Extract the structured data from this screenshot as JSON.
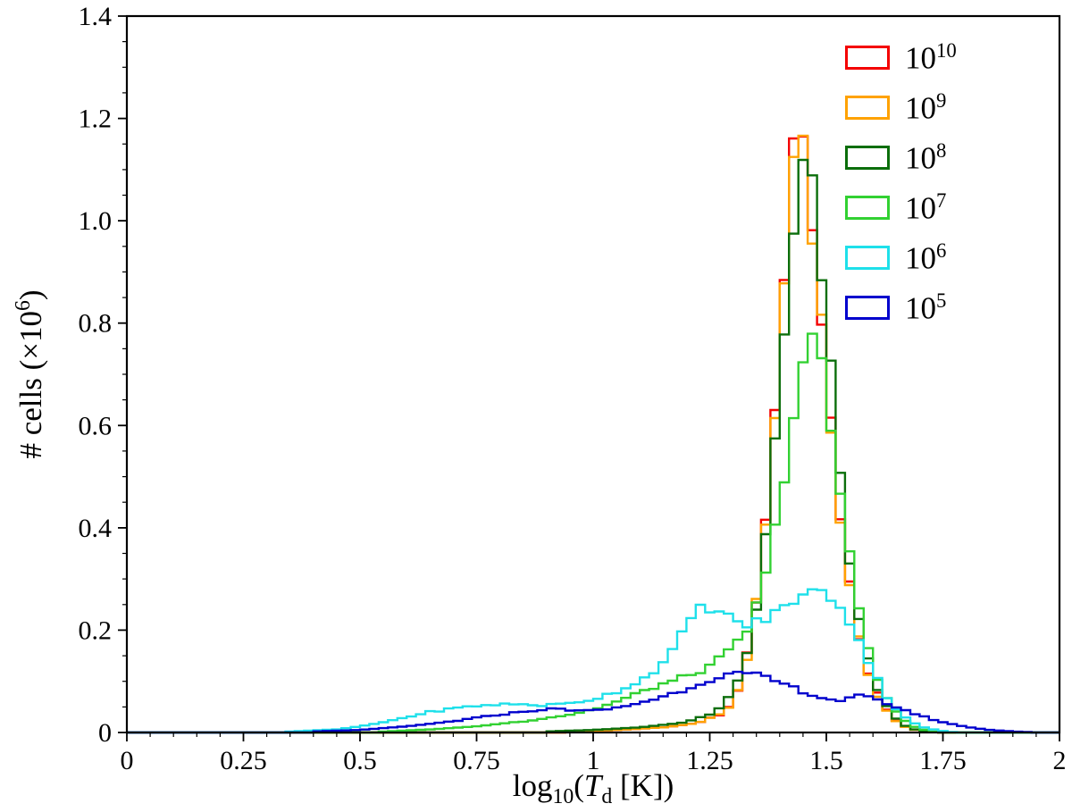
{
  "figure": {
    "background": "#ffffff"
  },
  "chart": {
    "ylabel_prefix": "# cells (×10",
    "ylabel_sup": "6",
    "ylabel_suffix": ")",
    "xlabel_log": "log",
    "xlabel_log_sub": "10",
    "xlabel_open": "(",
    "xlabel_T": "T",
    "xlabel_T_sub": "d",
    "xlabel_rest": " [K])"
  },
  "chart_data": {
    "type": "step_histogram",
    "title": "",
    "xlabel": "log10(T_d [K])",
    "ylabel": "# cells (x10^6)",
    "xlim": [
      0,
      2
    ],
    "ylim": [
      0,
      1.4
    ],
    "grid": false,
    "legend_position": "upper right",
    "x_ticks": [
      0,
      0.25,
      0.5,
      0.75,
      1,
      1.25,
      1.5,
      1.75,
      2
    ],
    "x_tick_labels": [
      "0",
      "0.25",
      "0.5",
      "0.75",
      "1",
      "1.25",
      "1.5",
      "1.75",
      "2"
    ],
    "y_ticks": [
      0,
      0.2,
      0.4,
      0.6,
      0.8,
      1.0,
      1.2,
      1.4
    ],
    "y_tick_labels": [
      "0",
      "0.2",
      "0.4",
      "0.6",
      "0.8",
      "1.0",
      "1.2",
      "1.4"
    ],
    "x_minor_step": 0.05,
    "y_minor_step": 0.05,
    "bin_width": 0.02,
    "series": [
      {
        "name": "1e10",
        "label_base": "10",
        "label_exp": "10",
        "color": "#f40000",
        "points": [
          [
            0.95,
            0.002
          ],
          [
            1.05,
            0.005
          ],
          [
            1.15,
            0.01
          ],
          [
            1.22,
            0.018
          ],
          [
            1.27,
            0.035
          ],
          [
            1.3,
            0.06
          ],
          [
            1.32,
            0.11
          ],
          [
            1.34,
            0.2
          ],
          [
            1.36,
            0.32
          ],
          [
            1.38,
            0.52
          ],
          [
            1.4,
            0.76
          ],
          [
            1.42,
            1.03
          ],
          [
            1.43,
            1.16
          ],
          [
            1.44,
            1.24
          ],
          [
            1.45,
            1.2
          ],
          [
            1.46,
            1.12
          ],
          [
            1.48,
            0.93
          ],
          [
            1.5,
            0.71
          ],
          [
            1.52,
            0.51
          ],
          [
            1.54,
            0.35
          ],
          [
            1.56,
            0.23
          ],
          [
            1.58,
            0.145
          ],
          [
            1.6,
            0.095
          ],
          [
            1.62,
            0.058
          ],
          [
            1.64,
            0.032
          ],
          [
            1.66,
            0.016
          ],
          [
            1.68,
            0.007
          ],
          [
            1.71,
            0.002
          ],
          [
            1.74,
            0
          ]
        ]
      },
      {
        "name": "1e9",
        "label_base": "10",
        "label_exp": "9",
        "color": "#ffa200",
        "points": [
          [
            0.95,
            0.002
          ],
          [
            1.05,
            0.005
          ],
          [
            1.15,
            0.01
          ],
          [
            1.22,
            0.018
          ],
          [
            1.27,
            0.034
          ],
          [
            1.3,
            0.058
          ],
          [
            1.32,
            0.105
          ],
          [
            1.34,
            0.19
          ],
          [
            1.36,
            0.31
          ],
          [
            1.38,
            0.5
          ],
          [
            1.4,
            0.74
          ],
          [
            1.42,
            1.0
          ],
          [
            1.43,
            1.13
          ],
          [
            1.44,
            1.21
          ],
          [
            1.45,
            1.17
          ],
          [
            1.46,
            1.09
          ],
          [
            1.48,
            0.91
          ],
          [
            1.5,
            0.69
          ],
          [
            1.52,
            0.5
          ],
          [
            1.54,
            0.34
          ],
          [
            1.56,
            0.22
          ],
          [
            1.58,
            0.14
          ],
          [
            1.6,
            0.09
          ],
          [
            1.62,
            0.055
          ],
          [
            1.64,
            0.03
          ],
          [
            1.66,
            0.015
          ],
          [
            1.68,
            0.007
          ],
          [
            1.71,
            0.002
          ],
          [
            1.74,
            0
          ]
        ]
      },
      {
        "name": "1e8",
        "label_base": "10",
        "label_exp": "8",
        "color": "#0b6e0b",
        "points": [
          [
            0.9,
            0.002
          ],
          [
            1.0,
            0.005
          ],
          [
            1.1,
            0.01
          ],
          [
            1.2,
            0.02
          ],
          [
            1.25,
            0.035
          ],
          [
            1.28,
            0.055
          ],
          [
            1.3,
            0.08
          ],
          [
            1.32,
            0.12
          ],
          [
            1.34,
            0.19
          ],
          [
            1.36,
            0.3
          ],
          [
            1.38,
            0.46
          ],
          [
            1.4,
            0.66
          ],
          [
            1.42,
            0.88
          ],
          [
            1.44,
            1.04
          ],
          [
            1.45,
            1.09
          ],
          [
            1.46,
            1.07
          ],
          [
            1.47,
            1.05
          ],
          [
            1.49,
            0.9
          ],
          [
            1.51,
            0.7
          ],
          [
            1.53,
            0.5
          ],
          [
            1.55,
            0.34
          ],
          [
            1.57,
            0.22
          ],
          [
            1.59,
            0.14
          ],
          [
            1.61,
            0.085
          ],
          [
            1.63,
            0.05
          ],
          [
            1.65,
            0.028
          ],
          [
            1.67,
            0.013
          ],
          [
            1.69,
            0.006
          ],
          [
            1.72,
            0.002
          ],
          [
            1.75,
            0
          ]
        ]
      },
      {
        "name": "1e7",
        "label_base": "10",
        "label_exp": "7",
        "color": "#32d132",
        "points": [
          [
            0.55,
            0.002
          ],
          [
            0.65,
            0.006
          ],
          [
            0.75,
            0.012
          ],
          [
            0.85,
            0.022
          ],
          [
            0.95,
            0.035
          ],
          [
            1.0,
            0.045
          ],
          [
            1.05,
            0.06
          ],
          [
            1.1,
            0.078
          ],
          [
            1.15,
            0.095
          ],
          [
            1.2,
            0.11
          ],
          [
            1.25,
            0.128
          ],
          [
            1.3,
            0.165
          ],
          [
            1.33,
            0.2
          ],
          [
            1.36,
            0.27
          ],
          [
            1.38,
            0.34
          ],
          [
            1.4,
            0.45
          ],
          [
            1.42,
            0.57
          ],
          [
            1.44,
            0.68
          ],
          [
            1.46,
            0.765
          ],
          [
            1.48,
            0.75
          ],
          [
            1.5,
            0.66
          ],
          [
            1.52,
            0.53
          ],
          [
            1.54,
            0.4
          ],
          [
            1.56,
            0.29
          ],
          [
            1.58,
            0.2
          ],
          [
            1.6,
            0.13
          ],
          [
            1.62,
            0.085
          ],
          [
            1.64,
            0.05
          ],
          [
            1.66,
            0.03
          ],
          [
            1.68,
            0.015
          ],
          [
            1.7,
            0.007
          ],
          [
            1.73,
            0.002
          ],
          [
            1.76,
            0
          ]
        ]
      },
      {
        "name": "1e6",
        "label_base": "10",
        "label_exp": "6",
        "color": "#1ee0ea",
        "points": [
          [
            0.35,
            0.002
          ],
          [
            0.45,
            0.006
          ],
          [
            0.5,
            0.012
          ],
          [
            0.55,
            0.02
          ],
          [
            0.6,
            0.03
          ],
          [
            0.65,
            0.04
          ],
          [
            0.7,
            0.047
          ],
          [
            0.75,
            0.052
          ],
          [
            0.8,
            0.055
          ],
          [
            0.85,
            0.055
          ],
          [
            0.9,
            0.053
          ],
          [
            0.95,
            0.057
          ],
          [
            1.0,
            0.065
          ],
          [
            1.05,
            0.08
          ],
          [
            1.1,
            0.1
          ],
          [
            1.15,
            0.135
          ],
          [
            1.18,
            0.17
          ],
          [
            1.2,
            0.21
          ],
          [
            1.22,
            0.24
          ],
          [
            1.25,
            0.245
          ],
          [
            1.28,
            0.23
          ],
          [
            1.3,
            0.22
          ],
          [
            1.33,
            0.21
          ],
          [
            1.38,
            0.225
          ],
          [
            1.43,
            0.26
          ],
          [
            1.46,
            0.272
          ],
          [
            1.48,
            0.275
          ],
          [
            1.5,
            0.27
          ],
          [
            1.53,
            0.25
          ],
          [
            1.56,
            0.2
          ],
          [
            1.58,
            0.16
          ],
          [
            1.6,
            0.12
          ],
          [
            1.63,
            0.07
          ],
          [
            1.66,
            0.035
          ],
          [
            1.7,
            0.012
          ],
          [
            1.74,
            0.004
          ],
          [
            1.78,
            0
          ]
        ]
      },
      {
        "name": "1e5",
        "label_base": "10",
        "label_exp": "5",
        "color": "#0000cd",
        "points": [
          [
            0.4,
            0.002
          ],
          [
            0.5,
            0.005
          ],
          [
            0.6,
            0.012
          ],
          [
            0.7,
            0.022
          ],
          [
            0.8,
            0.035
          ],
          [
            0.88,
            0.044
          ],
          [
            0.92,
            0.046
          ],
          [
            1.0,
            0.042
          ],
          [
            1.05,
            0.048
          ],
          [
            1.1,
            0.058
          ],
          [
            1.15,
            0.07
          ],
          [
            1.2,
            0.085
          ],
          [
            1.25,
            0.103
          ],
          [
            1.28,
            0.112
          ],
          [
            1.3,
            0.115
          ],
          [
            1.33,
            0.114
          ],
          [
            1.35,
            0.112
          ],
          [
            1.4,
            0.098
          ],
          [
            1.45,
            0.08
          ],
          [
            1.5,
            0.065
          ],
          [
            1.53,
            0.063
          ],
          [
            1.55,
            0.066
          ],
          [
            1.57,
            0.072
          ],
          [
            1.59,
            0.068
          ],
          [
            1.62,
            0.06
          ],
          [
            1.65,
            0.05
          ],
          [
            1.7,
            0.033
          ],
          [
            1.75,
            0.02
          ],
          [
            1.8,
            0.011
          ],
          [
            1.85,
            0.005
          ],
          [
            1.9,
            0.002
          ],
          [
            1.95,
            0
          ]
        ]
      }
    ]
  }
}
